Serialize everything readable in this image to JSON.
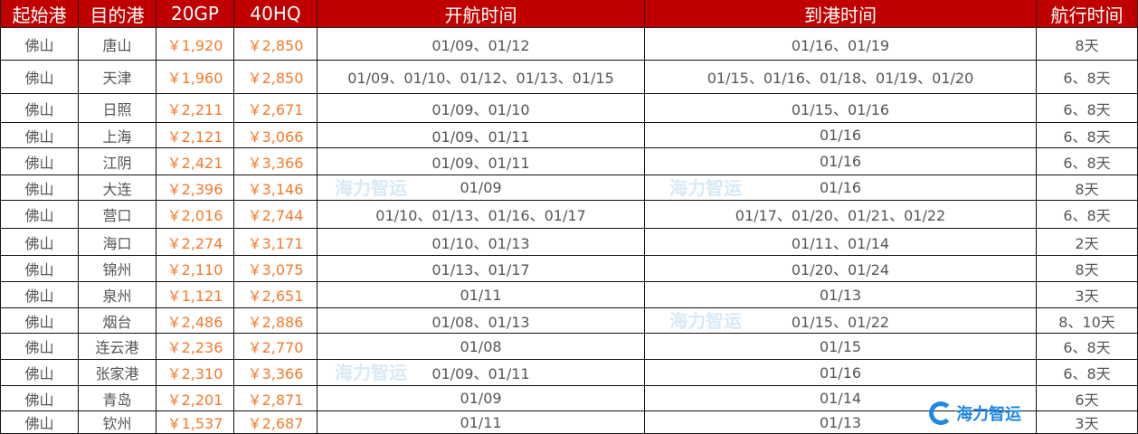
{
  "headers": [
    "起始港",
    "目的港",
    "20GP",
    "40HQ",
    "开航时间",
    "到港时间",
    "航行时间"
  ],
  "rows": [
    [
      "佛山",
      "唐山",
      "￥1,920",
      "￥2,850",
      "01/09、01/12",
      "01/16、01/19",
      "8天"
    ],
    [
      "佛山",
      "天津",
      "￥1,960",
      "￥2,850",
      "01/09、01/10、01/12、01/13、01/15",
      "01/15、01/16、01/18、01/19、01/20",
      "6、8天"
    ],
    [
      "佛山",
      "日照",
      "￥2,211",
      "￥2,671",
      "01/09、01/10",
      "01/15、01/16",
      "6、8天"
    ],
    [
      "佛山",
      "上海",
      "￥2,121",
      "￥3,066",
      "01/09、01/11",
      "01/16",
      "6、8天"
    ],
    [
      "佛山",
      "江阴",
      "￥2,421",
      "￥3,366",
      "01/09、01/11",
      "01/16",
      "6、8天"
    ],
    [
      "佛山",
      "大连",
      "￥2,396",
      "￥3,146",
      "01/09",
      "01/16",
      "8天"
    ],
    [
      "佛山",
      "营口",
      "￥2,016",
      "￥2,744",
      "01/10、01/13、01/16、01/17",
      "01/17、01/20、01/21、01/22",
      "6、8天"
    ],
    [
      "佛山",
      "海口",
      "￥2,274",
      "￥3,171",
      "01/10、01/13",
      "01/11、01/14",
      "2天"
    ],
    [
      "佛山",
      "锦州",
      "￥2,110",
      "￥3,075",
      "01/13、01/17",
      "01/20、01/24",
      "8天"
    ],
    [
      "佛山",
      "泉州",
      "￥1,121",
      "￥2,651",
      "01/11",
      "01/13",
      "3天"
    ],
    [
      "佛山",
      "烟台",
      "￥2,486",
      "￥2,886",
      "01/08、01/13",
      "01/15、01/22",
      "8、10天"
    ],
    [
      "佛山",
      "连云港",
      "￥2,236",
      "￥2,770",
      "01/08",
      "01/15",
      "6、8天"
    ],
    [
      "佛山",
      "张家港",
      "￥2,310",
      "￥3,366",
      "01/09、01/11",
      "01/16",
      "6、8天"
    ],
    [
      "佛山",
      "青岛",
      "￥2,201",
      "￥2,871",
      "01/09",
      "01/14",
      "6天"
    ],
    [
      "佛山",
      "钦州",
      "￥1,537",
      "￥2,687",
      "01/11",
      "01/13",
      "3天"
    ]
  ],
  "watermark": "海力智运",
  "colors": {
    "header_bg": "#c00000",
    "price": "#f47a2a",
    "text": "#555555"
  }
}
